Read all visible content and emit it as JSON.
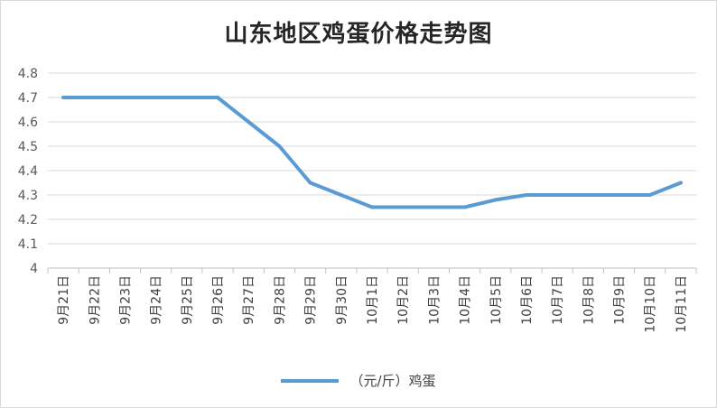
{
  "chart_data": {
    "type": "line",
    "title": "山东地区鸡蛋价格走势图",
    "xlabel": "",
    "ylabel": "",
    "categories": [
      "9月21日",
      "9月22日",
      "9月23日",
      "9月24日",
      "9月25日",
      "9月26日",
      "9月27日",
      "9月28日",
      "9月29日",
      "9月30日",
      "10月1日",
      "10月2日",
      "10月3日",
      "10月4日",
      "10月5日",
      "10月6日",
      "10月7日",
      "10月8日",
      "10月9日",
      "10月10日",
      "10月11日"
    ],
    "series": [
      {
        "name": "（元/斤）鸡蛋",
        "color": "#5b9bd5",
        "values": [
          4.7,
          4.7,
          4.7,
          4.7,
          4.7,
          4.7,
          4.6,
          4.5,
          4.35,
          4.3,
          4.25,
          4.25,
          4.25,
          4.25,
          4.28,
          4.3,
          4.3,
          4.3,
          4.3,
          4.3,
          4.35
        ]
      }
    ],
    "ylim": [
      4,
      4.8
    ],
    "yticks": [
      "4",
      "4.1",
      "4.2",
      "4.3",
      "4.4",
      "4.5",
      "4.6",
      "4.7",
      "4.8"
    ],
    "grid": true,
    "legend_position": "bottom"
  }
}
